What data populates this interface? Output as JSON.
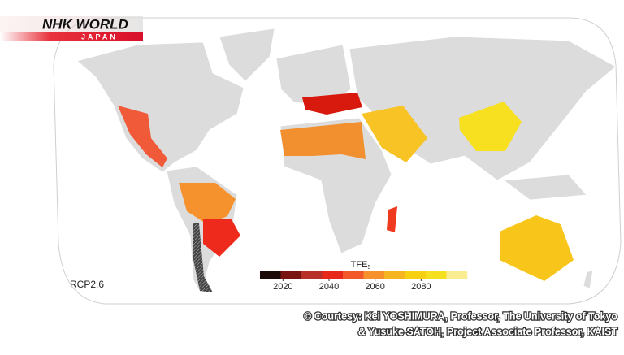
{
  "logo": {
    "title": "NHK WORLD",
    "subtitle": "JAPAN"
  },
  "scenario": "RCP2.6",
  "legend": {
    "title": "TFE",
    "title_subscript": "5",
    "xlim": [
      2010,
      2100
    ],
    "xticks": [
      2020,
      2040,
      2060,
      2080
    ],
    "colors": [
      "#1a0a08",
      "#7a1410",
      "#b8302a",
      "#e8281a",
      "#f2582a",
      "#f5902a",
      "#f6b420",
      "#f8d012",
      "#f5e020",
      "#faec90"
    ]
  },
  "credit": {
    "line1": "© Courtesy: Kei YOSHIMURA, Professor, The University of Tokyo",
    "line2": "& Yusuke SATOH, Project Associate Professor, KAIST"
  }
}
